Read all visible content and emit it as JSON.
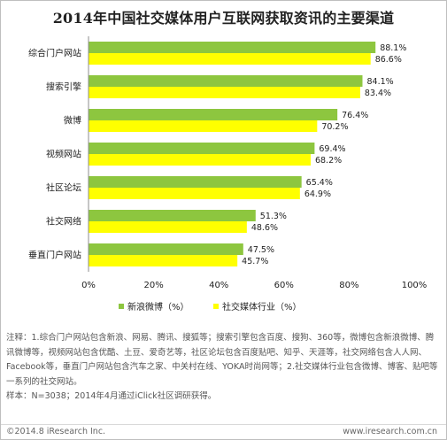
{
  "title": "2014年中国社交媒体用户互联网获取资讯的主要渠道",
  "chart_data": {
    "type": "bar",
    "orientation": "horizontal",
    "categories": [
      "综合门户网站",
      "搜索引擎",
      "微博",
      "视频网站",
      "社区论坛",
      "社交网络",
      "垂直门户网站"
    ],
    "series": [
      {
        "name": "新浪微博（%）",
        "color": "#8dc63f",
        "values": [
          88.1,
          84.1,
          76.4,
          69.4,
          65.4,
          51.3,
          47.5
        ],
        "labels": [
          "88.1%",
          "84.1%",
          "76.4%",
          "69.4%",
          "65.4%",
          "51.3%",
          "47.5%"
        ]
      },
      {
        "name": "社交媒体行业（%）",
        "color": "#ffff00",
        "values": [
          86.6,
          83.4,
          70.2,
          68.2,
          64.9,
          48.6,
          45.7
        ],
        "labels": [
          "86.6%",
          "83.4%",
          "70.2%",
          "68.2%",
          "64.9%",
          "48.6%",
          "45.7%"
        ]
      }
    ],
    "xlim": [
      0,
      100
    ],
    "xticks": [
      "0%",
      "20%",
      "40%",
      "60%",
      "80%",
      "100%"
    ],
    "legend_position": "bottom-left",
    "grid": false
  },
  "notes": {
    "line1": "注释：1.综合门户网站包含新浪、网易、腾讯、搜狐等；搜索引擎包含百度、搜狗、360等，微博包含新浪微博、腾讯微博等，视频网站包含优酷、土豆、爱奇艺等，社区论坛包含百度贴吧、知乎、天涯等，社交网络包含人人网、Facebook等，垂直门户网站包含汽车之家、中关村在线、YOKA时尚网等；2.社交媒体行业包含微博、博客、贴吧等一系列的社交网站。",
    "line2": "样本：N=3038；2014年4月通过iClick社区调研获得。"
  },
  "footer": {
    "left": "©2014.8 iResearch Inc.",
    "right": "www.iresearch.com.cn"
  }
}
